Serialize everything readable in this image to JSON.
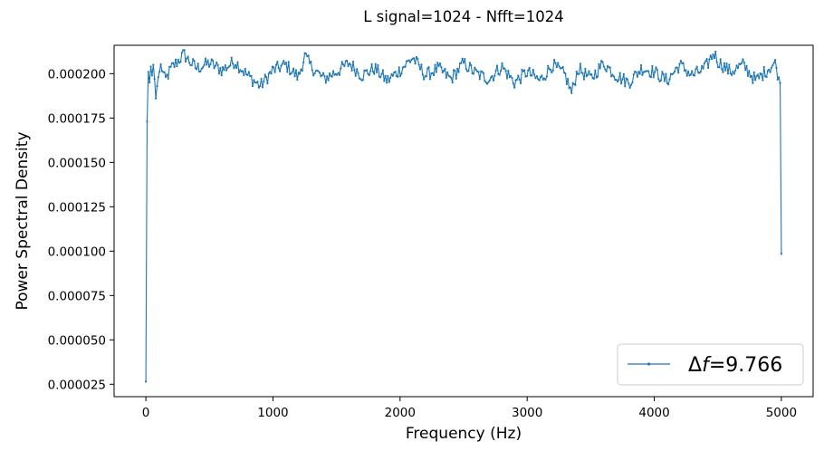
{
  "chart_data": {
    "type": "line",
    "title": "L signal=1024 - Nfft=1024",
    "xlabel": "Frequency (Hz)",
    "ylabel": "Power Spectral Density",
    "xlim": [
      -250,
      5250
    ],
    "ylim": [
      1.8e-05,
      0.000216
    ],
    "x_ticks": [
      0,
      1000,
      2000,
      3000,
      4000,
      5000
    ],
    "x_tick_labels": [
      "0",
      "1000",
      "2000",
      "3000",
      "4000",
      "5000"
    ],
    "y_ticks": [
      2.5e-05,
      5e-05,
      7.5e-05,
      0.0001,
      0.000125,
      0.00015,
      0.000175,
      0.0002
    ],
    "y_tick_labels": [
      "0.000025",
      "0.000050",
      "0.000075",
      "0.000100",
      "0.000125",
      "0.000150",
      "0.000175",
      "0.000200"
    ],
    "grid": false,
    "legend_position": "lower-right",
    "series": [
      {
        "name": "Δf=9.766",
        "legend_prefix": "Δ",
        "legend_italic": "f",
        "legend_suffix": "=9.766",
        "color": "#1f77b4",
        "df": 9.766,
        "n_points": 513,
        "marker": "dot",
        "sampled_x": [
          0,
          9.766,
          19.53,
          29.3,
          39.06,
          48.83,
          58.59,
          68.36,
          78.13,
          87.89,
          97.66,
          120,
          150,
          200,
          250,
          300,
          330,
          400,
          500,
          600,
          700,
          800,
          900,
          1000,
          1100,
          1200,
          1250,
          1300,
          1400,
          1500,
          1600,
          1700,
          1800,
          1900,
          2000,
          2100,
          2200,
          2300,
          2400,
          2500,
          2600,
          2700,
          2800,
          2900,
          3000,
          3100,
          3200,
          3300,
          3350,
          3400,
          3500,
          3600,
          3700,
          3800,
          3900,
          4000,
          4100,
          4200,
          4300,
          4400,
          4470,
          4500,
          4600,
          4700,
          4800,
          4900,
          4950,
          4980,
          4990.2,
          5000
        ],
        "sampled_y": [
          2.65e-05,
          0.000173,
          0.000201,
          0.000195,
          0.000204,
          0.000199,
          0.000205,
          0.000197,
          0.000186,
          0.000193,
          0.000198,
          0.000205,
          0.000196,
          0.000203,
          0.000207,
          0.000211,
          0.000208,
          0.000203,
          0.000206,
          0.000202,
          0.000207,
          0.000199,
          0.000193,
          0.000202,
          0.000205,
          0.000198,
          0.00021,
          0.000204,
          0.000197,
          0.000201,
          0.000206,
          0.000199,
          0.000203,
          0.000196,
          0.000202,
          0.000209,
          0.000199,
          0.000203,
          0.000197,
          0.000206,
          0.0002,
          0.000197,
          0.000204,
          0.000195,
          0.000201,
          0.000196,
          0.000205,
          0.000199,
          0.000189,
          0.000203,
          0.000197,
          0.000206,
          0.000199,
          0.000195,
          0.000203,
          0.000201,
          0.000196,
          0.000205,
          0.000199,
          0.000203,
          0.000212,
          0.000207,
          0.000201,
          0.000205,
          0.000196,
          0.000203,
          0.000206,
          0.000198,
          0.000197,
          9.85e-05
        ]
      }
    ]
  }
}
